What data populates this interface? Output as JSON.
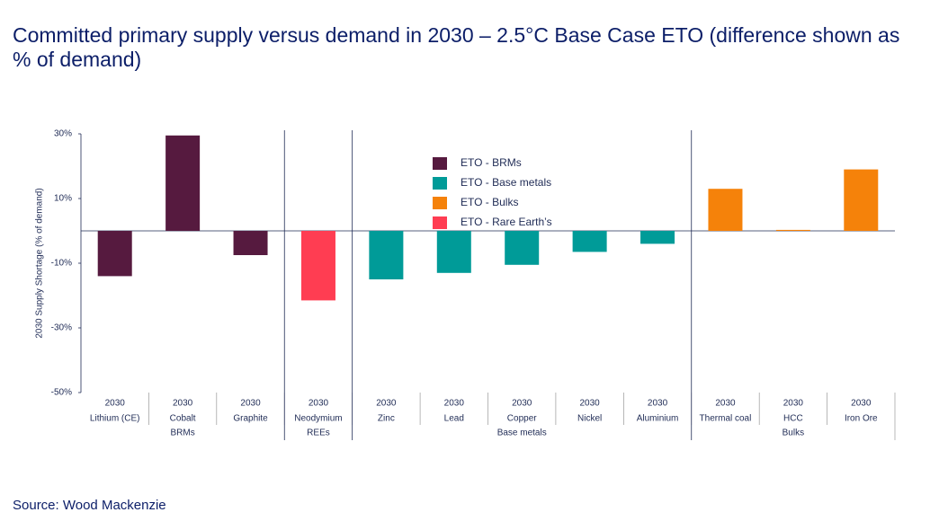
{
  "chart_data": {
    "type": "bar",
    "title": "Committed primary supply versus demand in 2030 – 2.5°C Base Case ETO (difference shown as % of demand)",
    "y_label": "2030 Supply Shortage (% of demand)",
    "source": "Source: Wood Mackenzie",
    "categories": [
      "Lithium (CE)",
      "Cobalt",
      "Graphite",
      "Neodymium",
      "Zinc",
      "Lead",
      "Copper",
      "Nickel",
      "Aluminium",
      "Thermal coal",
      "HCC",
      "Iron Ore"
    ],
    "category_years": [
      "2030",
      "2030",
      "2030",
      "2030",
      "2030",
      "2030",
      "2030",
      "2030",
      "2030",
      "2030",
      "2030",
      "2030"
    ],
    "groups": [
      {
        "label": "BRMs",
        "count": 3
      },
      {
        "label": "REEs",
        "count": 1
      },
      {
        "label": "Base metals",
        "count": 5
      },
      {
        "label": "Bulks",
        "count": 3
      }
    ],
    "series": [
      {
        "name": "ETO - BRMs",
        "color": "#561a3f",
        "values": [
          -14,
          29.5,
          -7.5,
          null,
          null,
          null,
          null,
          null,
          null,
          null,
          null,
          null
        ]
      },
      {
        "name": "ETO - Base metals",
        "color": "#009b98",
        "values": [
          null,
          null,
          null,
          null,
          -15,
          -13,
          -10.5,
          -6.5,
          -4,
          null,
          null,
          null
        ]
      },
      {
        "name": "ETO -  Bulks",
        "color": "#f5820a",
        "values": [
          null,
          null,
          null,
          null,
          null,
          null,
          null,
          null,
          null,
          13,
          0.3,
          19
        ]
      },
      {
        "name": "ETO -  Rare Earth’s",
        "color": "#ff3d52",
        "values": [
          null,
          null,
          null,
          -21.5,
          null,
          null,
          null,
          null,
          null,
          null,
          null,
          null
        ]
      }
    ],
    "ylim": [
      -50,
      30
    ],
    "yticks": [
      {
        "value": 30,
        "label": "30%"
      },
      {
        "value": 10,
        "label": "10%"
      },
      {
        "value": -10,
        "label": "-10%"
      },
      {
        "value": -30,
        "label": "-30%"
      },
      {
        "value": -50,
        "label": "-50%"
      }
    ]
  }
}
